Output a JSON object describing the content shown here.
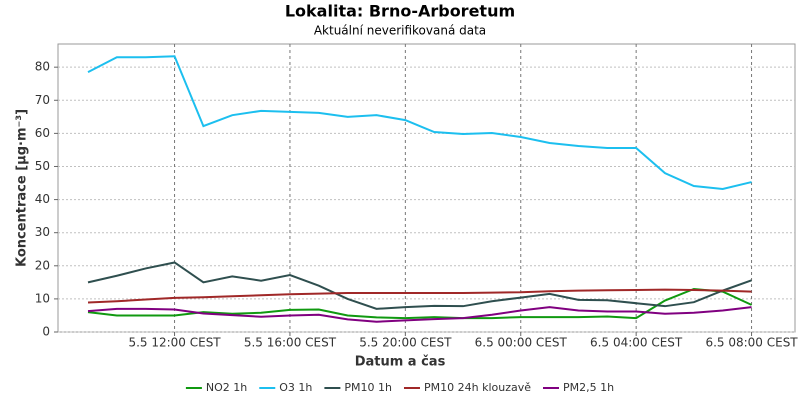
{
  "chart_data": {
    "type": "line",
    "title": "Lokalita: Brno-Arboretum",
    "subtitle": "Aktuální neverifikovaná data",
    "xlabel": "Datum a čas",
    "ylabel": "Koncentrace [µg·m⁻³]",
    "categories": [
      null,
      null,
      null,
      "5.5 12:00 CEST",
      null,
      null,
      null,
      "5.5 16:00 CEST",
      null,
      null,
      null,
      "5.5 20:00 CEST",
      null,
      null,
      null,
      "6.5 00:00 CEST",
      null,
      null,
      null,
      "6.5 04:00 CEST",
      null,
      null,
      null,
      "6.5 08:00 CEST"
    ],
    "ylim": [
      0,
      87
    ],
    "yticks": [
      0,
      10,
      20,
      30,
      40,
      50,
      60,
      70,
      80
    ],
    "grid": true,
    "legend": "bottom",
    "series": [
      {
        "name": "NO2 1h",
        "color": "#109910",
        "values": [
          6,
          5,
          5,
          5,
          6,
          5.5,
          5.8,
          6.7,
          6.8,
          5,
          4.4,
          4.2,
          4.5,
          4.2,
          4.2,
          4.5,
          4.5,
          4.5,
          4.7,
          4.2,
          9.5,
          13,
          12.2,
          8.2
        ]
      },
      {
        "name": "O3 1h",
        "color": "#1cbfef",
        "values": [
          78.5,
          83,
          83,
          83.3,
          62.2,
          65.5,
          66.8,
          66.5,
          66.2,
          65,
          65.5,
          64,
          60.4,
          59.8,
          60.1,
          58.9,
          57.1,
          56.2,
          55.6,
          55.6,
          48,
          44.1,
          43.2,
          45.3
        ]
      },
      {
        "name": "PM10 1h",
        "color": "#2f4f4f",
        "values": [
          15,
          17,
          19.2,
          21,
          15,
          16.8,
          15.5,
          17.2,
          14,
          10,
          7,
          7.5,
          7.9,
          7.8,
          9.3,
          10.4,
          11.5,
          9.7,
          9.6,
          8.7,
          7.8,
          9,
          12.5,
          15.6
        ]
      },
      {
        "name": "PM10 24h klouzavě",
        "color": "#a02828",
        "values": [
          8.9,
          9.3,
          9.8,
          10.3,
          10.5,
          10.8,
          11.1,
          11.4,
          11.6,
          11.8,
          11.8,
          11.8,
          11.8,
          11.8,
          11.9,
          12,
          12.3,
          12.5,
          12.6,
          12.7,
          12.8,
          12.7,
          12.5,
          12.2
        ]
      },
      {
        "name": "PM2,5 1h",
        "color": "#800080",
        "values": [
          6.3,
          7,
          7,
          6.8,
          5.6,
          5.1,
          4.6,
          5,
          5.2,
          3.8,
          3.1,
          3.5,
          3.9,
          4.2,
          5.2,
          6.5,
          7.5,
          6.5,
          6.2,
          6.2,
          5.5,
          5.8,
          6.5,
          7.5
        ]
      }
    ]
  }
}
